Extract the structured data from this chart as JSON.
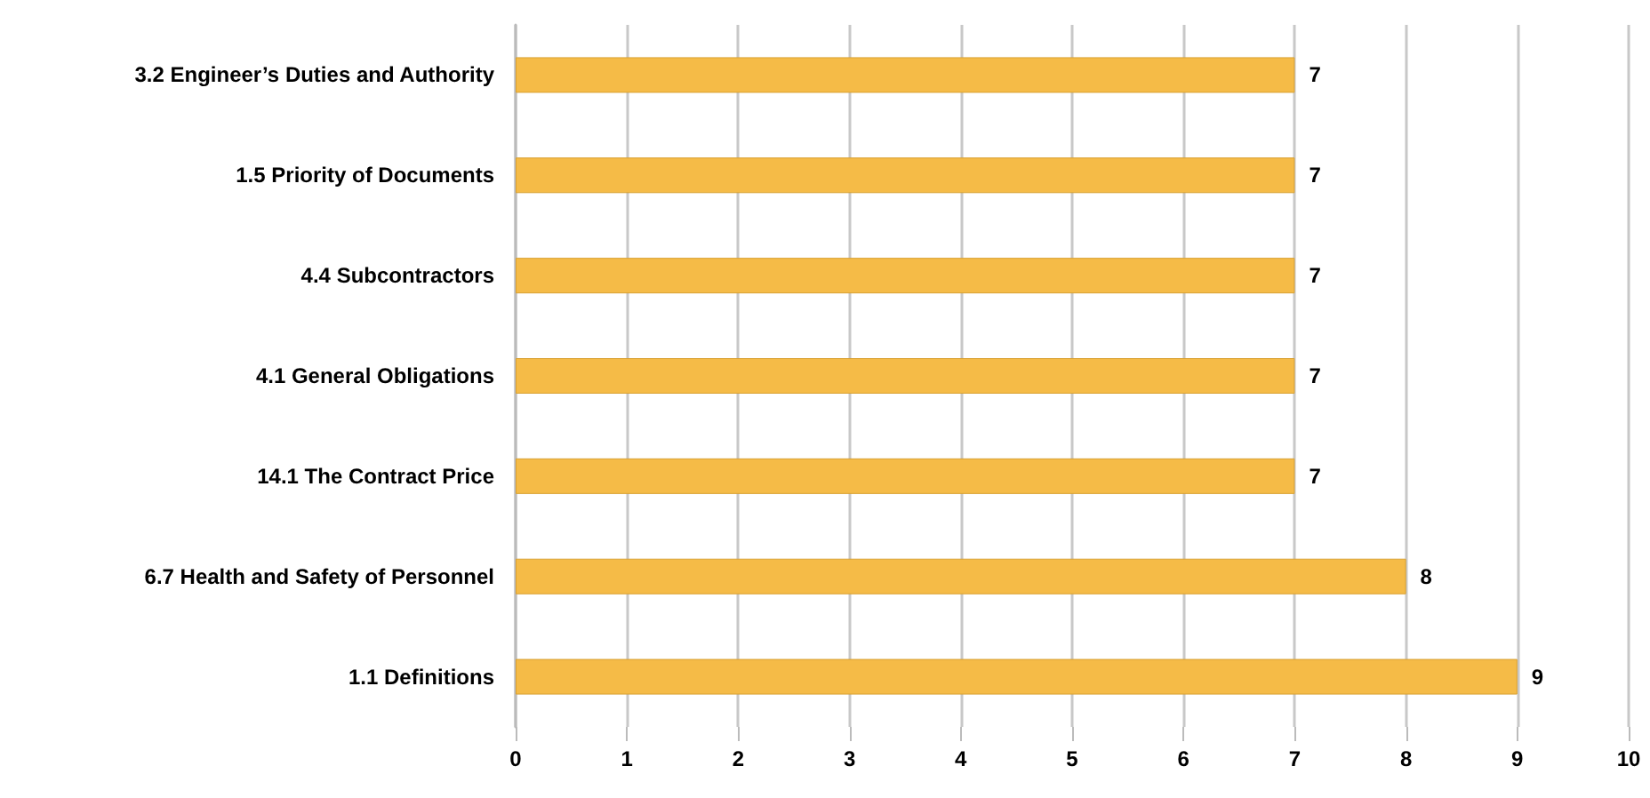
{
  "chart_data": {
    "type": "bar",
    "orientation": "horizontal",
    "categories": [
      "3.2 Engineer’s Duties and Authority",
      "1.5 Priority of Documents",
      "4.4 Subcontractors",
      "4.1 General Obligations",
      "14.1 The Contract Price",
      "6.7 Health and Safety of Personnel",
      "1.1 Definitions"
    ],
    "values": [
      7,
      7,
      7,
      7,
      7,
      8,
      9
    ],
    "color": "#f5bb47",
    "xlim": [
      0,
      10
    ],
    "xticks": [
      0,
      1,
      2,
      3,
      4,
      5,
      6,
      7,
      8,
      9,
      10
    ],
    "grid": "x",
    "data_labels": true
  }
}
